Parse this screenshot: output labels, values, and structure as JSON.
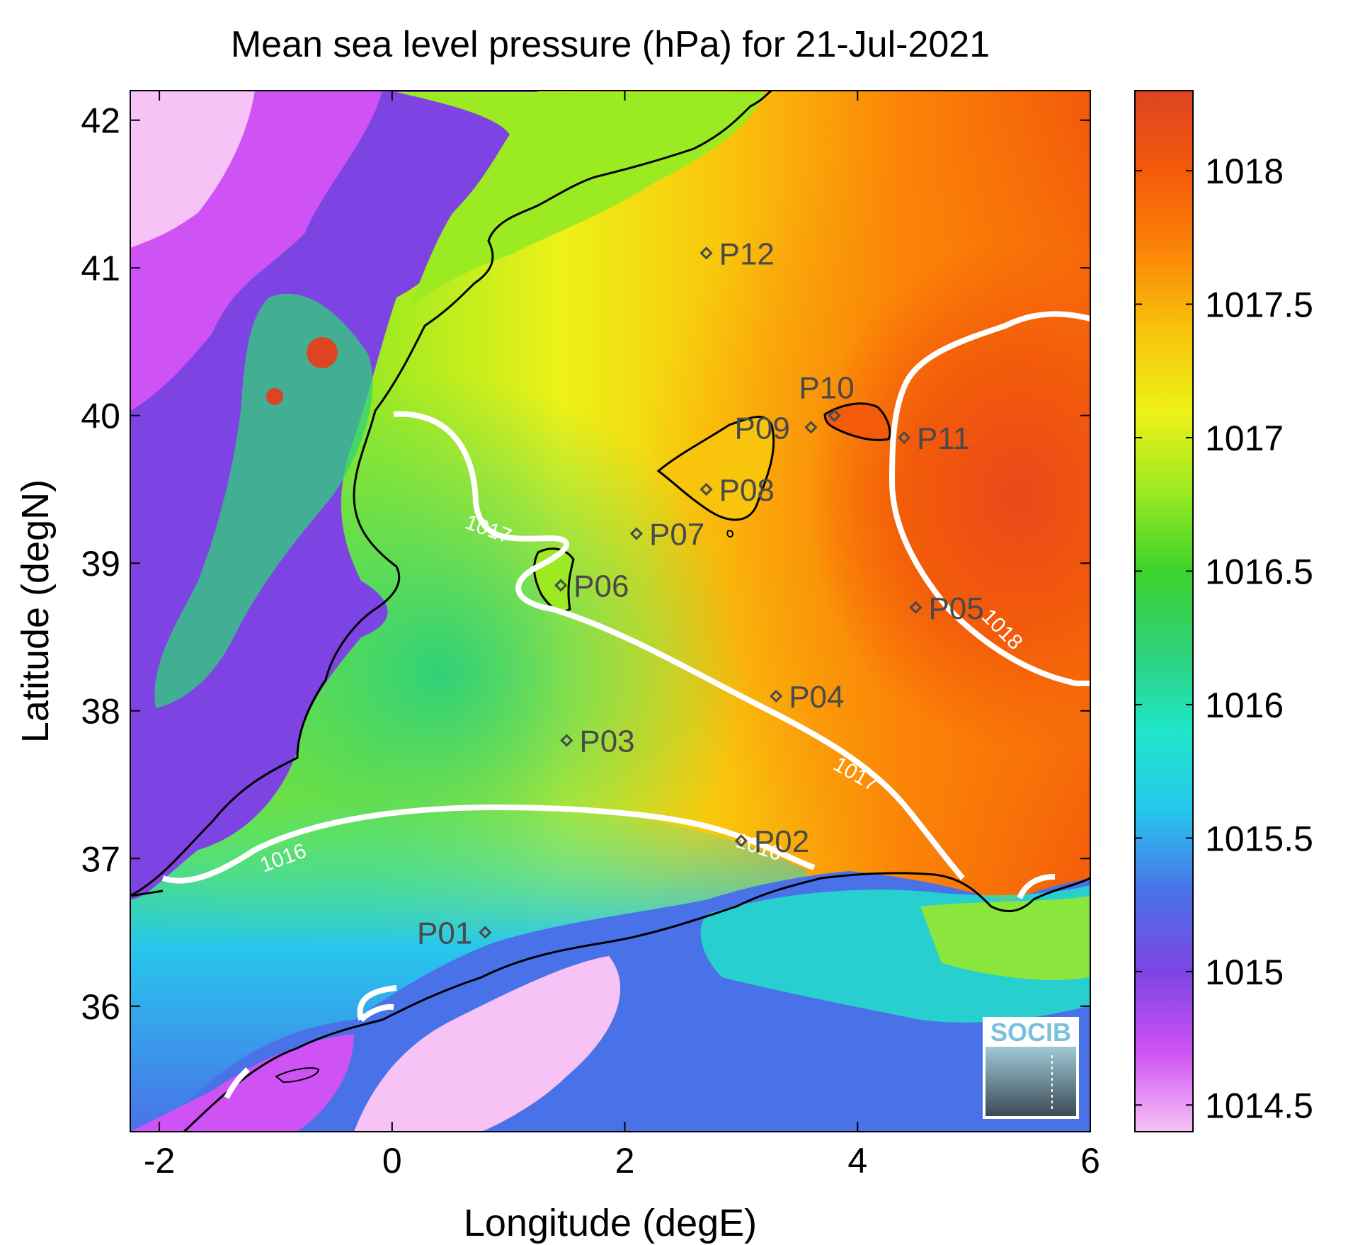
{
  "title": "Mean sea level pressure (hPa) for 21-Jul-2021",
  "xlabel": "Longitude (degE)",
  "ylabel": "Latitude (degN)",
  "x_ticks": [
    "-2",
    "0",
    "2",
    "4",
    "6"
  ],
  "y_ticks": [
    "42",
    "41",
    "40",
    "39",
    "38",
    "37",
    "36"
  ],
  "colorbar": {
    "ticks": [
      "1018",
      "1017.5",
      "1017",
      "1016.5",
      "1016",
      "1015.5",
      "1015",
      "1014.5"
    ],
    "range": [
      1014.4,
      1018.3
    ],
    "colors": [
      "#f7c2f5",
      "#cf52f5",
      "#7d44e3",
      "#4a72e8",
      "#27c6ec",
      "#1fe6c8",
      "#2fd178",
      "#3bd32c",
      "#9bea22",
      "#eef117",
      "#f9c40c",
      "#fb8507",
      "#f35a0a",
      "#dd4422"
    ]
  },
  "contours": [
    {
      "label": "1016",
      "color": "#ffffff"
    },
    {
      "label": "1017",
      "color": "#ffffff"
    },
    {
      "label": "1018",
      "color": "#ffffff"
    }
  ],
  "stations": [
    {
      "name": "P01",
      "lon": 0.8,
      "lat": 36.5
    },
    {
      "name": "P02",
      "lon": 3.0,
      "lat": 37.12
    },
    {
      "name": "P03",
      "lon": 1.5,
      "lat": 37.8
    },
    {
      "name": "P04",
      "lon": 3.3,
      "lat": 38.1
    },
    {
      "name": "P05",
      "lon": 4.5,
      "lat": 38.7
    },
    {
      "name": "P06",
      "lon": 1.45,
      "lat": 38.85
    },
    {
      "name": "P07",
      "lon": 2.1,
      "lat": 39.2
    },
    {
      "name": "P08",
      "lon": 2.7,
      "lat": 39.5
    },
    {
      "name": "P09",
      "lon": 3.6,
      "lat": 39.92
    },
    {
      "name": "P10",
      "lon": 3.8,
      "lat": 40.0
    },
    {
      "name": "P11",
      "lon": 4.4,
      "lat": 39.85
    },
    {
      "name": "P12",
      "lon": 2.7,
      "lat": 41.1
    }
  ],
  "logo": "SOCIB"
}
